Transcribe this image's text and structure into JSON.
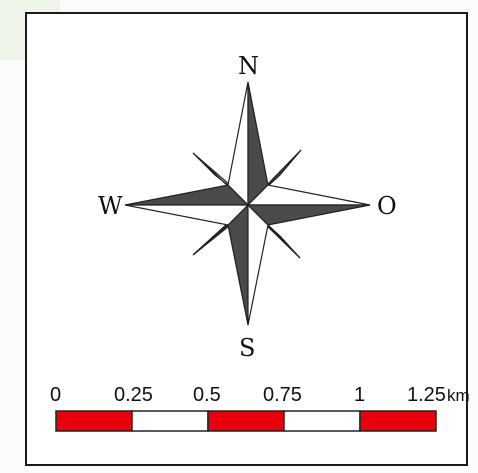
{
  "compass": {
    "north": "N",
    "south": "S",
    "west": "W",
    "east": "O",
    "fill_color": "#4a4a4a",
    "outline_color": "#222222"
  },
  "scale_bar": {
    "ticks": [
      "0",
      "0.25",
      "0.5",
      "0.75",
      "1",
      "1.25"
    ],
    "unit": "km",
    "segment_colors": [
      "#e8000b",
      "#ffffff",
      "#e8000b",
      "#ffffff",
      "#e8000b"
    ]
  }
}
